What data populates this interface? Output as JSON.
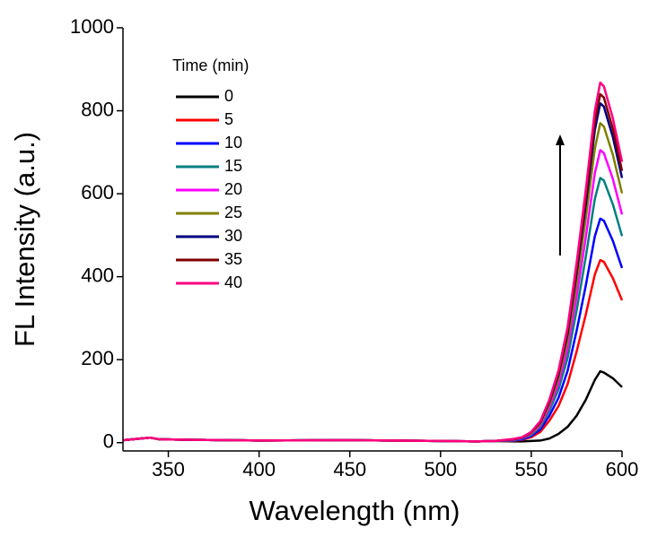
{
  "chart_data": {
    "type": "line",
    "x_label": "Wavelength (nm)",
    "y_label": "FL Intensity (a.u.)",
    "legend_title": "Time (min)",
    "x": [
      325,
      335,
      340,
      345,
      360,
      400,
      450,
      500,
      520,
      530,
      540,
      545,
      550,
      555,
      560,
      565,
      570,
      575,
      580,
      585,
      588,
      590,
      595,
      600
    ],
    "xlim": [
      325,
      600
    ],
    "xticks": [
      350,
      400,
      450,
      500,
      550,
      600
    ],
    "ylim": [
      -20,
      1000
    ],
    "yticks": [
      0,
      200,
      400,
      600,
      800,
      1000
    ],
    "series": [
      {
        "name": "0",
        "color": "#000000",
        "values": [
          6,
          10,
          12,
          8,
          7,
          5,
          6,
          4,
          3,
          4,
          3,
          3,
          4,
          5,
          10,
          21,
          38,
          65,
          103,
          151,
          172,
          169,
          155,
          134
        ]
      },
      {
        "name": "5",
        "color": "#ff0000",
        "values": [
          6,
          10,
          12,
          8,
          7,
          5,
          6,
          4,
          3,
          4,
          4,
          7,
          13,
          26,
          53,
          88,
          141,
          220,
          308,
          405,
          440,
          436,
          396,
          343
        ]
      },
      {
        "name": "10",
        "color": "#0000ff",
        "values": [
          6,
          10,
          12,
          8,
          7,
          5,
          6,
          4,
          3,
          4,
          5,
          8,
          16,
          32,
          65,
          108,
          173,
          270,
          378,
          497,
          540,
          535,
          486,
          421
        ]
      },
      {
        "name": "15",
        "color": "#008080",
        "values": [
          6,
          10,
          12,
          8,
          7,
          5,
          6,
          4,
          3,
          4,
          6,
          10,
          19,
          38,
          77,
          128,
          204,
          319,
          447,
          587,
          638,
          632,
          574,
          498
        ]
      },
      {
        "name": "20",
        "color": "#ff00ff",
        "values": [
          6,
          10,
          12,
          8,
          7,
          5,
          6,
          4,
          3,
          4,
          7,
          11,
          21,
          42,
          85,
          141,
          226,
          353,
          494,
          649,
          705,
          698,
          635,
          550
        ]
      },
      {
        "name": "25",
        "color": "#808000",
        "values": [
          6,
          10,
          12,
          8,
          7,
          5,
          6,
          4,
          3,
          4,
          8,
          12,
          23,
          46,
          92,
          154,
          246,
          385,
          539,
          708,
          770,
          762,
          693,
          601
        ]
      },
      {
        "name": "30",
        "color": "#000080",
        "values": [
          6,
          10,
          12,
          8,
          7,
          5,
          6,
          4,
          3,
          4,
          8,
          12,
          25,
          49,
          98,
          164,
          262,
          409,
          573,
          753,
          818,
          810,
          736,
          638
        ]
      },
      {
        "name": "35",
        "color": "#800000",
        "values": [
          6,
          10,
          12,
          8,
          7,
          5,
          6,
          4,
          3,
          4,
          8,
          13,
          25,
          50,
          101,
          168,
          269,
          420,
          588,
          773,
          840,
          832,
          756,
          655
        ]
      },
      {
        "name": "40",
        "color": "#ff0080",
        "values": [
          6,
          10,
          12,
          8,
          7,
          5,
          6,
          4,
          3,
          4,
          9,
          13,
          26,
          52,
          104,
          174,
          278,
          434,
          608,
          799,
          868,
          859,
          781,
          677
        ]
      }
    ]
  }
}
